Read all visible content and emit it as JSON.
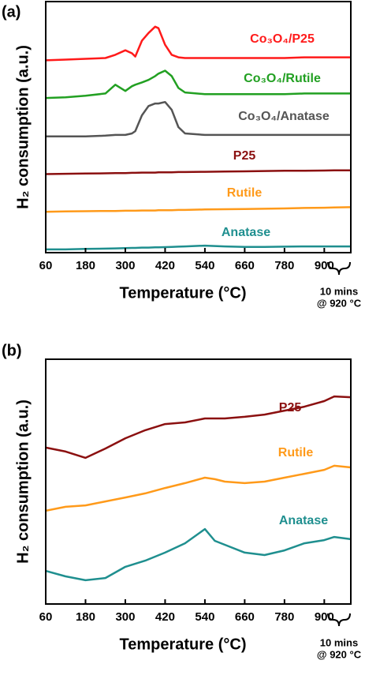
{
  "chart_data": [
    {
      "type": "line",
      "panel_label": "(a)",
      "xlabel": "Temperature (°C)",
      "ylabel": "H₂ consumption (a.u.)",
      "annotation": [
        "10 mins",
        "@ 920 °C"
      ],
      "xlim": [
        60,
        980
      ],
      "xticks": [
        60,
        180,
        300,
        420,
        540,
        660,
        780,
        900
      ],
      "ylim": [
        0,
        100
      ],
      "x": [
        60,
        120,
        180,
        240,
        270,
        300,
        320,
        330,
        350,
        370,
        390,
        400,
        420,
        440,
        460,
        480,
        540,
        600,
        660,
        720,
        780,
        840,
        900,
        930,
        980
      ],
      "series": [
        {
          "name": "Co₃O₄/P25",
          "color": "#ff1a1a",
          "values": [
            76.6,
            76.9,
            77.2,
            77.5,
            78.8,
            80.6,
            79.4,
            78.1,
            84.4,
            87.5,
            90,
            89.4,
            82.8,
            78.8,
            77.8,
            77.5,
            77.5,
            77.5,
            77.5,
            77.5,
            77.5,
            77.8,
            77.8,
            77.8,
            77.8
          ]
        },
        {
          "name": "Co₃O₄/Rutile",
          "color": "#22a022",
          "values": [
            61.6,
            61.9,
            62.5,
            63.4,
            66.9,
            64.4,
            66.3,
            66.9,
            67.8,
            68.8,
            70.3,
            71.3,
            72.5,
            70.3,
            65.6,
            63.8,
            63.1,
            63.1,
            63.1,
            63.1,
            63.1,
            63.4,
            63.4,
            63.4,
            63.4
          ]
        },
        {
          "name": "Co₃O₄/Anatase",
          "color": "#555555",
          "values": [
            46.3,
            46.3,
            46.3,
            46.6,
            46.9,
            46.9,
            47.5,
            48.4,
            54.7,
            58.4,
            59.4,
            59.4,
            60,
            56.9,
            50,
            47.5,
            46.9,
            46.9,
            46.9,
            46.9,
            46.9,
            46.9,
            46.9,
            46.9,
            46.9
          ]
        },
        {
          "name": "P25",
          "color": "#8b1010",
          "values": [
            31.3,
            31.4,
            31.5,
            31.6,
            31.7,
            31.7,
            31.8,
            31.8,
            31.9,
            31.9,
            31.9,
            32,
            32,
            32,
            32.1,
            32.1,
            32.2,
            32.3,
            32.4,
            32.5,
            32.6,
            32.6,
            32.7,
            32.8,
            32.8
          ]
        },
        {
          "name": "Rutile",
          "color": "#ff9a1a",
          "values": [
            16.3,
            16.4,
            16.5,
            16.6,
            16.6,
            16.7,
            16.7,
            16.7,
            16.8,
            16.8,
            16.8,
            16.9,
            16.9,
            16.9,
            17,
            17,
            17.2,
            17.3,
            17.4,
            17.5,
            17.6,
            17.8,
            17.9,
            18,
            18.1
          ]
        },
        {
          "name": "Anatase",
          "color": "#1f8f8f",
          "values": [
            1.3,
            1.3,
            1.5,
            1.6,
            1.7,
            1.8,
            1.9,
            1.9,
            2,
            2,
            2.1,
            2.1,
            2.2,
            2.3,
            2.4,
            2.5,
            2.8,
            2.5,
            2.3,
            2.3,
            2.4,
            2.5,
            2.5,
            2.5,
            2.5
          ]
        }
      ]
    },
    {
      "type": "line",
      "panel_label": "(b)",
      "xlabel": "Temperature (°C)",
      "ylabel": "H₂ consumption (a.u.)",
      "annotation": [
        "10 mins",
        "@ 920 °C"
      ],
      "xlim": [
        60,
        980
      ],
      "xticks": [
        60,
        180,
        300,
        420,
        540,
        660,
        780,
        900
      ],
      "ylim": [
        0,
        100
      ],
      "x": [
        60,
        120,
        180,
        240,
        300,
        360,
        420,
        480,
        540,
        570,
        600,
        660,
        720,
        780,
        840,
        900,
        930,
        980
      ],
      "series": [
        {
          "name": "P25",
          "color": "#8b1010",
          "values": [
            63.9,
            62.3,
            59.7,
            63.5,
            67.7,
            71.0,
            73.5,
            74.2,
            75.8,
            75.8,
            75.8,
            76.5,
            77.4,
            79.0,
            80.6,
            82.9,
            84.8,
            84.5
          ]
        },
        {
          "name": "Rutile",
          "color": "#ff9a1a",
          "values": [
            38.1,
            39.7,
            40.3,
            41.9,
            43.5,
            45.2,
            47.4,
            49.4,
            51.6,
            51.0,
            50.0,
            49.4,
            50.0,
            51.6,
            53.2,
            54.8,
            56.5,
            55.8
          ]
        },
        {
          "name": "Anatase",
          "color": "#1f8f8f",
          "values": [
            13.5,
            11.3,
            9.7,
            10.6,
            15.2,
            17.7,
            21.0,
            24.8,
            30.6,
            25.8,
            24.2,
            21.0,
            20.0,
            21.9,
            24.8,
            26.1,
            27.4,
            26.5
          ]
        }
      ]
    }
  ]
}
